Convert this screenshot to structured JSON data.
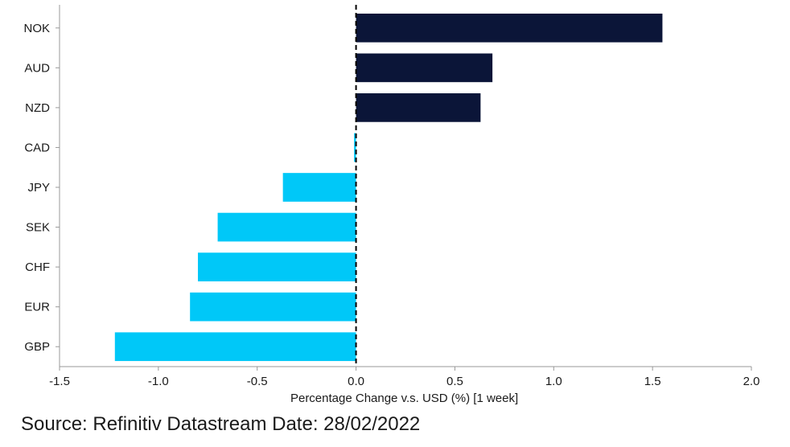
{
  "chart_data": {
    "type": "bar",
    "orientation": "horizontal",
    "categories": [
      "NOK",
      "AUD",
      "NZD",
      "CAD",
      "JPY",
      "SEK",
      "CHF",
      "EUR",
      "GBP"
    ],
    "values": [
      1.55,
      0.69,
      0.63,
      -0.01,
      -0.37,
      -0.7,
      -0.8,
      -0.84,
      -1.22
    ],
    "xlabel": "Percentage Change v.s. USD (%) [1 week]",
    "ylabel": "",
    "xlim": [
      -1.5,
      2.0
    ],
    "xticks": [
      "-1.5",
      "-1.0",
      "-0.5",
      "0.0",
      "0.5",
      "1.0",
      "1.5",
      "2.0"
    ],
    "grid": false,
    "colors": {
      "positive": "#0b1538",
      "negative": "#00c8f8"
    }
  },
  "source_note": "Source: Refinitiv Datastream Date: 28/02/2022"
}
